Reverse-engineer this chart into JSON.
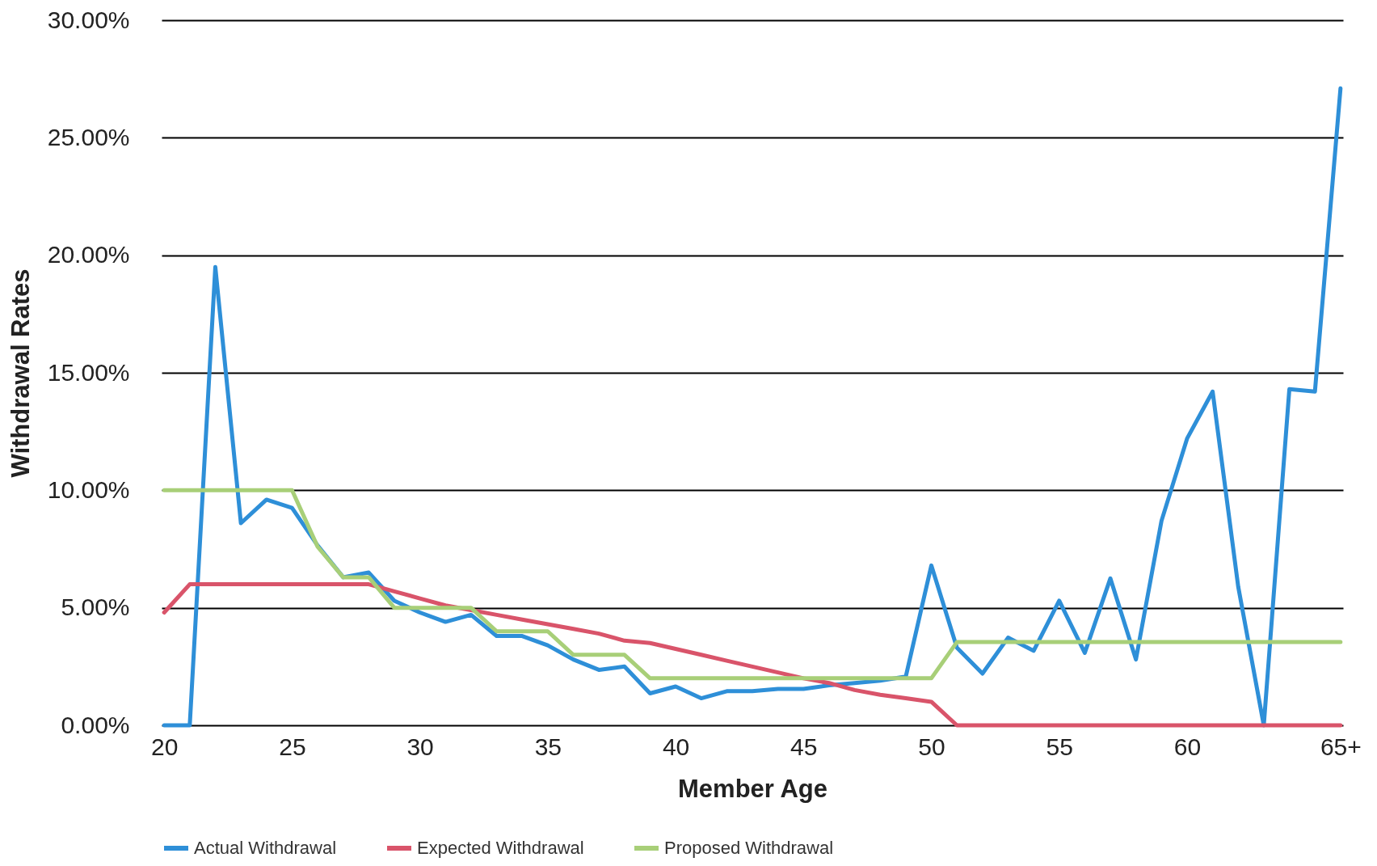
{
  "chart_data": {
    "type": "line",
    "xlabel": "Member Age",
    "ylabel": "Withdrawal Rates",
    "categories": [
      "20",
      null,
      null,
      null,
      null,
      "25",
      null,
      null,
      null,
      null,
      "30",
      null,
      null,
      null,
      null,
      "35",
      null,
      null,
      null,
      null,
      "40",
      null,
      null,
      null,
      null,
      "45",
      null,
      null,
      null,
      null,
      "50",
      null,
      null,
      null,
      null,
      "55",
      null,
      null,
      null,
      null,
      "60",
      null,
      null,
      null,
      null,
      null,
      "65+"
    ],
    "series": [
      {
        "name": "Actual Withdrawal",
        "color": "#2e8fd8",
        "values": [
          0,
          0,
          19.5,
          8.6,
          9.6,
          9.25,
          7.65,
          6.3,
          6.5,
          5.3,
          4.8,
          4.4,
          4.7,
          3.8,
          3.8,
          3.4,
          2.8,
          2.36,
          2.5,
          1.36,
          1.65,
          1.15,
          1.45,
          1.45,
          1.55,
          1.55,
          1.7,
          1.8,
          1.9,
          2.07,
          6.8,
          3.3,
          2.2,
          3.73,
          3.17,
          5.3,
          3.08,
          6.25,
          2.8,
          8.7,
          12.2,
          14.2,
          5.9,
          0,
          14.3,
          14.2,
          27.1
        ]
      },
      {
        "name": "Expected Withdrawal",
        "color": "#d9546a",
        "values": [
          4.8,
          6,
          6,
          6,
          6,
          6,
          6,
          6,
          6,
          5.7,
          5.4,
          5.1,
          4.9,
          4.7,
          4.5,
          4.3,
          4.1,
          3.9,
          3.6,
          3.5,
          3.25,
          3,
          2.75,
          2.5,
          2.25,
          2,
          1.8,
          1.5,
          1.3,
          1.15,
          1,
          0,
          0,
          0,
          0,
          0,
          0,
          0,
          0,
          0,
          0,
          0,
          0,
          0,
          0,
          0,
          0
        ]
      },
      {
        "name": "Proposed Withdrawal",
        "color": "#a8cf78",
        "values": [
          10,
          10,
          10,
          10,
          10,
          10,
          7.6,
          6.3,
          6.3,
          5,
          5,
          5,
          5,
          4,
          4,
          4,
          3,
          3,
          3,
          2,
          2,
          2,
          2,
          2,
          2,
          2,
          2,
          2,
          2,
          2,
          2,
          3.54,
          3.54,
          3.54,
          3.54,
          3.54,
          3.54,
          3.54,
          3.54,
          3.54,
          3.54,
          3.54,
          3.54,
          3.54,
          3.54,
          3.54,
          3.54
        ]
      }
    ],
    "ylim": [
      0,
      30
    ],
    "yticks": [
      {
        "value": 0,
        "label": "0.00%"
      },
      {
        "value": 5,
        "label": "5.00%"
      },
      {
        "value": 10,
        "label": "10.00%"
      },
      {
        "value": 15,
        "label": "15.00%"
      },
      {
        "value": 20,
        "label": "20.00%"
      },
      {
        "value": 25,
        "label": "25.00%"
      },
      {
        "value": 30,
        "label": "30.00%"
      }
    ],
    "grid": "y",
    "legend": "bottom"
  }
}
